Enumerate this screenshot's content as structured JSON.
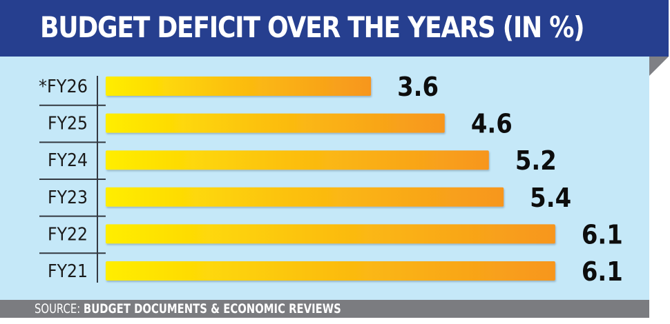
{
  "header": {
    "title": "BUDGET DEFICIT OVER THE YEARS (IN %)"
  },
  "footer": {
    "source_label": "SOURCE:",
    "source_text": "BUDGET DOCUMENTS & ECONOMIC REVIEWS"
  },
  "colors": {
    "header_bg": "#263f8f",
    "panel_bg": "#c5e8f8",
    "bar_start": "#ffee00",
    "bar_end": "#f7961e",
    "footer_bg": "#7b7c80"
  },
  "chart_data": {
    "type": "bar",
    "orientation": "horizontal",
    "title": "BUDGET DEFICIT OVER THE YEARS (IN %)",
    "xlabel": "",
    "ylabel": "",
    "categories": [
      "*FY26",
      "FY25",
      "FY24",
      "FY23",
      "FY22",
      "FY21"
    ],
    "values": [
      3.6,
      4.6,
      5.2,
      5.4,
      6.1,
      6.1
    ],
    "value_labels": [
      "3.6",
      "4.6",
      "5.2",
      "5.4",
      "6.1",
      "6.1"
    ],
    "xlim": [
      0,
      6.1
    ],
    "grid": false,
    "legend": "none"
  }
}
